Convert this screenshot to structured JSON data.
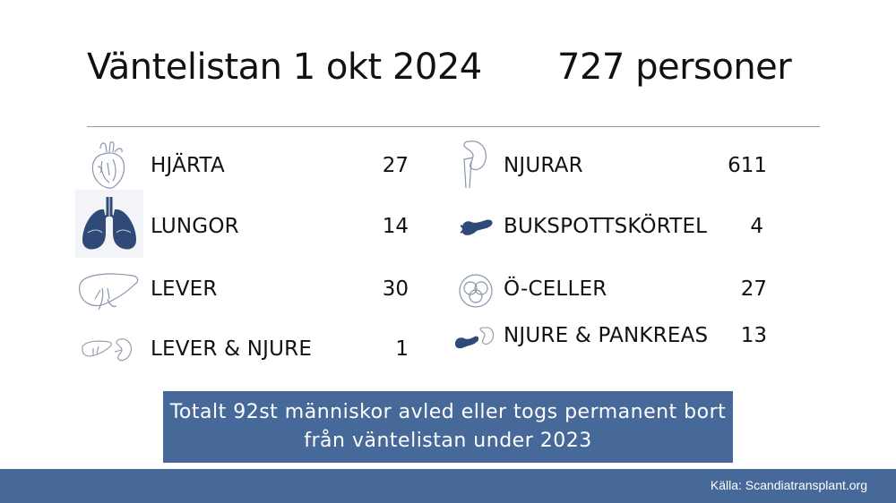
{
  "header": {
    "title": "Väntelistan 1 okt 2024",
    "total": "727 personer"
  },
  "left_rows": [
    {
      "label": "HJÄRTA",
      "value": "27",
      "icon": "heart-icon"
    },
    {
      "label": "LUNGOR",
      "value": "14",
      "icon": "lungs-icon"
    },
    {
      "label": "LEVER",
      "value": "30",
      "icon": "liver-icon"
    },
    {
      "label": "LEVER & NJURE",
      "value": "1",
      "icon": "liver-kidney-icon"
    }
  ],
  "right_rows": [
    {
      "label": "NJURAR",
      "value": "611",
      "icon": "kidney-icon"
    },
    {
      "label": "BUKSPOTTSKÖRTEL",
      "value": "4",
      "icon": "pancreas-icon"
    },
    {
      "label": "Ö-CELLER",
      "value": "27",
      "icon": "islet-cells-icon"
    },
    {
      "label": "NJURE & PANKREAS",
      "value": "13",
      "icon": "kidney-pancreas-icon"
    }
  ],
  "note": {
    "line1": "Totalt 92st människor avled eller togs permanent bort",
    "line2": "från väntelistan under 2023"
  },
  "footer": {
    "source": "Källa: Scandiatransplant.org"
  },
  "colors": {
    "accent": "#46699a",
    "icon_dark": "#2f4a77",
    "icon_light": "#8a96ad"
  }
}
